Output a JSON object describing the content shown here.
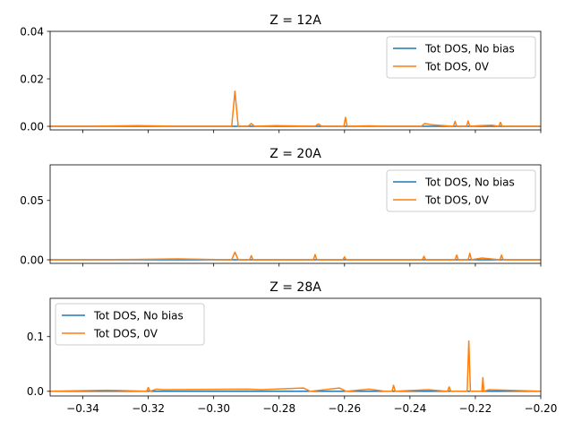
{
  "chart_data": [
    {
      "type": "line",
      "title": "Z = 12A",
      "xlabel": "",
      "ylabel": "",
      "xlim": [
        -0.35,
        -0.2
      ],
      "ylim": [
        -0.0015,
        0.04
      ],
      "yticks": [
        0.0,
        0.02,
        0.04
      ],
      "ytick_labels": [
        "0.00",
        "0.02",
        "0.04"
      ],
      "show_xtick_labels": false,
      "legend": "top-right",
      "series": [
        {
          "name": "Tot DOS, No bias",
          "color": "#1f77b4",
          "x": [
            -0.35,
            -0.2
          ],
          "y": [
            0.0,
            0.0
          ]
        },
        {
          "name": "Tot DOS, 0V",
          "color": "#ff7f0e",
          "x": [
            -0.35,
            -0.338,
            -0.323,
            -0.311,
            -0.2965,
            -0.2945,
            -0.2935,
            -0.2925,
            -0.2895,
            -0.2885,
            -0.2875,
            -0.281,
            -0.269,
            -0.268,
            -0.267,
            -0.2602,
            -0.2597,
            -0.2592,
            -0.2525,
            -0.2475,
            -0.2365,
            -0.2355,
            -0.233,
            -0.2267,
            -0.2262,
            -0.2257,
            -0.2227,
            -0.2222,
            -0.2217,
            -0.2185,
            -0.215,
            -0.2128,
            -0.2123,
            -0.2118,
            -0.205,
            -0.2
          ],
          "y": [
            0.0,
            0.0,
            0.0003,
            0.0,
            0.0,
            0.0,
            0.0148,
            0.0,
            0.0,
            0.0012,
            0.0,
            0.0003,
            0.0,
            0.001,
            0.0,
            0.0,
            0.0038,
            0.0,
            0.0002,
            0.0,
            0.0,
            0.0012,
            0.0006,
            0.0,
            0.0021,
            0.0,
            0.0,
            0.0023,
            0.0,
            0.0003,
            0.0005,
            0.0,
            0.0017,
            0.0,
            0.0,
            0.0
          ]
        }
      ]
    },
    {
      "type": "line",
      "title": "Z = 20A",
      "xlabel": "",
      "ylabel": "",
      "xlim": [
        -0.35,
        -0.2
      ],
      "ylim": [
        -0.003,
        0.08
      ],
      "yticks": [
        0.0,
        0.05
      ],
      "ytick_labels": [
        "0.00",
        "0.05"
      ],
      "show_xtick_labels": false,
      "legend": "top-right",
      "series": [
        {
          "name": "Tot DOS, No bias",
          "color": "#1f77b4",
          "x": [
            -0.35,
            -0.2
          ],
          "y": [
            0.0,
            0.0
          ]
        },
        {
          "name": "Tot DOS, 0V",
          "color": "#ff7f0e",
          "x": [
            -0.35,
            -0.324,
            -0.311,
            -0.2945,
            -0.2935,
            -0.2925,
            -0.289,
            -0.2885,
            -0.288,
            -0.2695,
            -0.269,
            -0.2685,
            -0.2605,
            -0.26,
            -0.2595,
            -0.2362,
            -0.2357,
            -0.2352,
            -0.2262,
            -0.2257,
            -0.2252,
            -0.2222,
            -0.2217,
            -0.2212,
            -0.218,
            -0.2125,
            -0.212,
            -0.2115,
            -0.2
          ],
          "y": [
            0.0,
            0.0003,
            0.0008,
            0.0,
            0.0065,
            0.0,
            0.0,
            0.0035,
            0.0,
            0.0,
            0.0045,
            0.0,
            0.0,
            0.0025,
            0.0,
            0.0,
            0.003,
            0.0,
            0.0,
            0.004,
            0.0,
            0.0,
            0.0055,
            0.0,
            0.0015,
            0.0,
            0.004,
            0.0,
            0.0
          ]
        }
      ]
    },
    {
      "type": "line",
      "title": "Z = 28A",
      "xlabel": "",
      "ylabel": "",
      "xlim": [
        -0.35,
        -0.2
      ],
      "ylim": [
        -0.0085,
        0.17
      ],
      "yticks": [
        0.0,
        0.1
      ],
      "ytick_labels": [
        "0.0",
        "0.1"
      ],
      "xticks": [
        -0.34,
        -0.32,
        -0.3,
        -0.28,
        -0.26,
        -0.24,
        -0.22,
        -0.2
      ],
      "xtick_labels": [
        "−0.34",
        "−0.32",
        "−0.30",
        "−0.28",
        "−0.26",
        "−0.24",
        "−0.22",
        "−0.20"
      ],
      "show_xtick_labels": true,
      "legend": "top-left",
      "series": [
        {
          "name": "Tot DOS, No bias",
          "color": "#1f77b4",
          "x": [
            -0.35,
            -0.2
          ],
          "y": [
            0.0,
            0.0
          ]
        },
        {
          "name": "Tot DOS, 0V",
          "color": "#ff7f0e",
          "x": [
            -0.35,
            -0.3325,
            -0.3205,
            -0.32,
            -0.3195,
            -0.3175,
            -0.3155,
            -0.2895,
            -0.2855,
            -0.2725,
            -0.2705,
            -0.2615,
            -0.2595,
            -0.2525,
            -0.2475,
            -0.2455,
            -0.245,
            -0.2445,
            -0.2345,
            -0.2285,
            -0.228,
            -0.2275,
            -0.2225,
            -0.222,
            -0.2215,
            -0.218,
            -0.2177,
            -0.2174,
            -0.2158,
            -0.2
          ],
          "y": [
            0.0,
            0.002,
            0.0,
            0.007,
            0.0,
            0.004,
            0.003,
            0.004,
            0.003,
            0.006,
            0.0,
            0.006,
            0.0,
            0.004,
            0.0,
            0.0,
            0.011,
            0.0,
            0.003,
            0.0,
            0.008,
            0.0,
            0.0,
            0.092,
            0.0,
            0.0,
            0.025,
            0.0,
            0.003,
            0.0
          ]
        }
      ]
    }
  ]
}
